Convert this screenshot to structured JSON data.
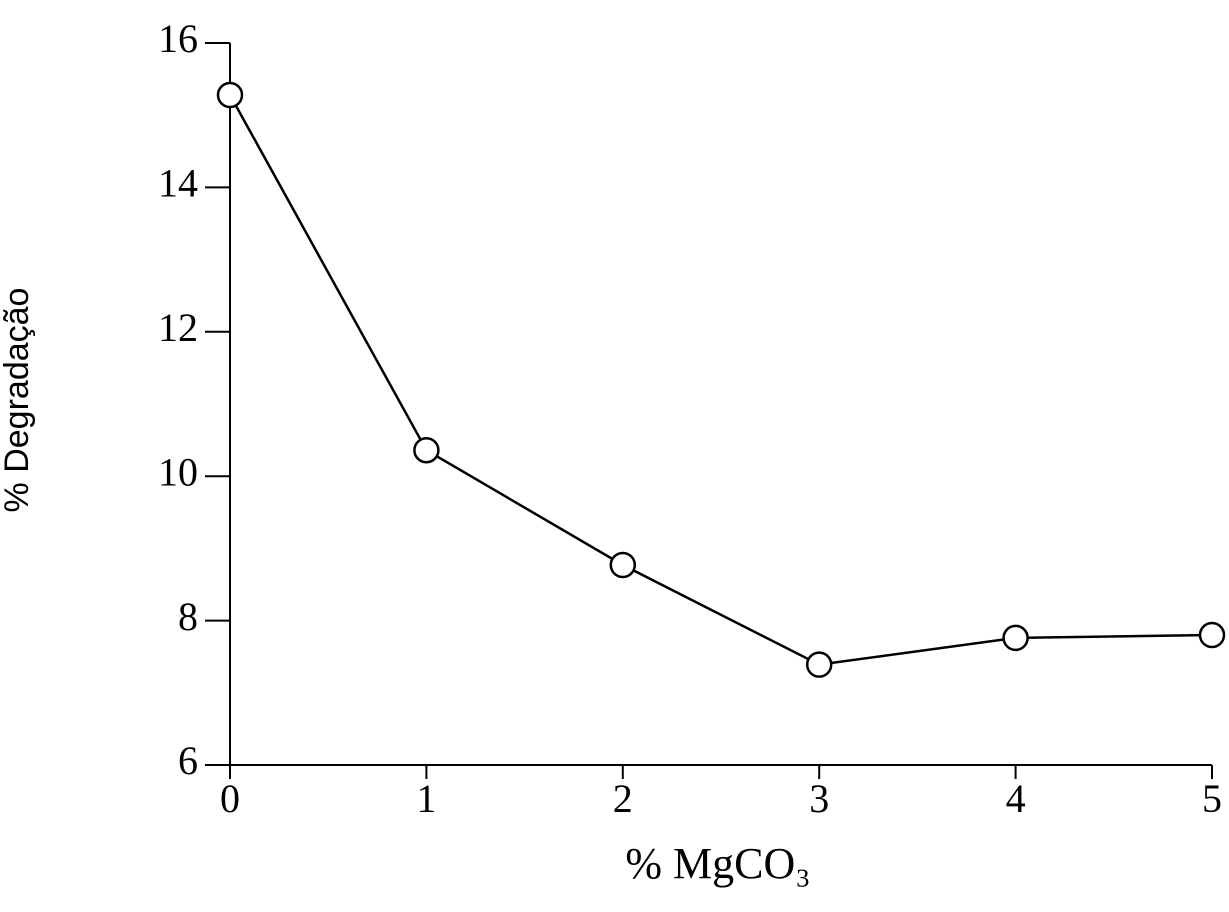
{
  "chart_data": {
    "type": "line",
    "x_label": "% MgCO₃",
    "y_label": "% Degradação",
    "x": [
      0,
      1,
      2,
      3,
      4,
      5
    ],
    "series": [
      {
        "name": null,
        "color": "#000000",
        "values": [
          15.28,
          10.36,
          8.77,
          7.39,
          7.76,
          7.8
        ]
      }
    ],
    "xlim": [
      0,
      5
    ],
    "xticks": [
      0,
      1,
      2,
      3,
      4,
      5
    ],
    "ylim": [
      6,
      16
    ],
    "yticks": [
      6,
      8,
      10,
      12,
      14,
      16
    ],
    "marker": "open-circle"
  }
}
